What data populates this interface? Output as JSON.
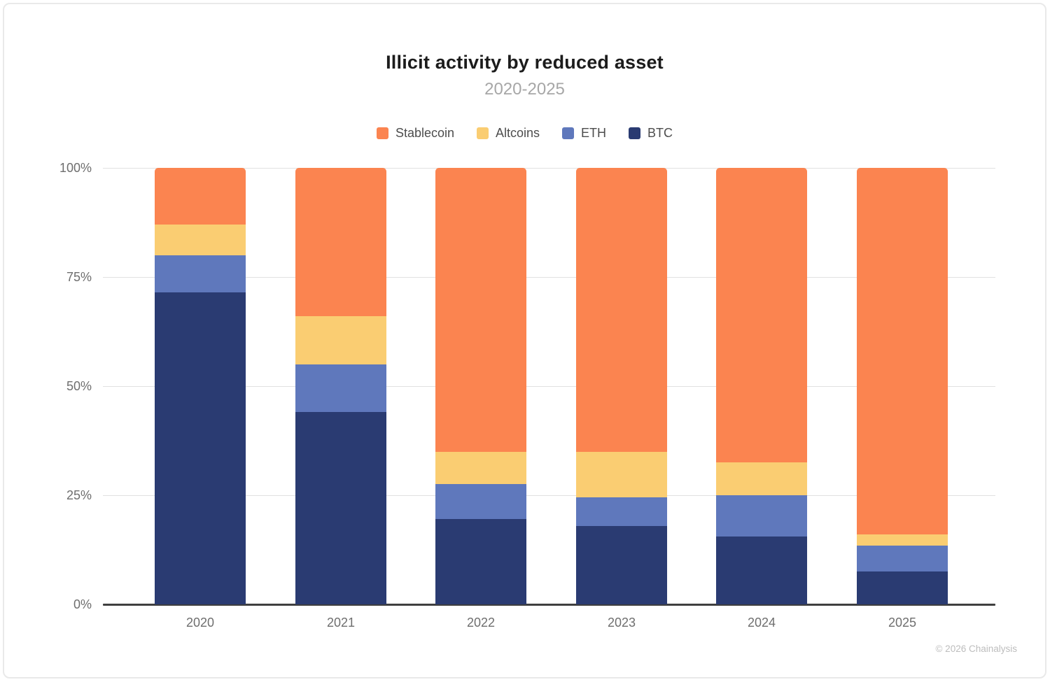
{
  "chart_data": {
    "type": "bar",
    "stacked": true,
    "title": "Illicit activity by reduced asset",
    "subtitle": "2020-2025",
    "categories": [
      "2020",
      "2021",
      "2022",
      "2023",
      "2024",
      "2025"
    ],
    "series": [
      {
        "name": "Stablecoin",
        "color": "#fb8450",
        "values": [
          13,
          34,
          65,
          65,
          67.5,
          84
        ]
      },
      {
        "name": "Altcoins",
        "color": "#facd72",
        "values": [
          7,
          11,
          7.5,
          10.5,
          7.5,
          2.5
        ]
      },
      {
        "name": "ETH",
        "color": "#5f78bc",
        "values": [
          8.5,
          11,
          8,
          6.5,
          9.5,
          6
        ]
      },
      {
        "name": "BTC",
        "color": "#2a3b72",
        "values": [
          71.5,
          44,
          19.5,
          18,
          15.5,
          7.5
        ]
      }
    ],
    "yticks": [
      "100%",
      "75%",
      "50%",
      "25%",
      "0%"
    ],
    "ylim": [
      0,
      100
    ],
    "ylabel": "",
    "xlabel": "",
    "grid": true,
    "legend_position": "top"
  },
  "colors": {
    "title_text": "#1c1c1c",
    "subtitle_text": "#a7a7a7",
    "tick_text": "#6e6e6e",
    "gridline": "#e1e1e1",
    "axis_line": "#3f3f3f",
    "footer_text": "#bdbdbd"
  },
  "footer": {
    "copyright": "© 2026 Chainalysis"
  }
}
